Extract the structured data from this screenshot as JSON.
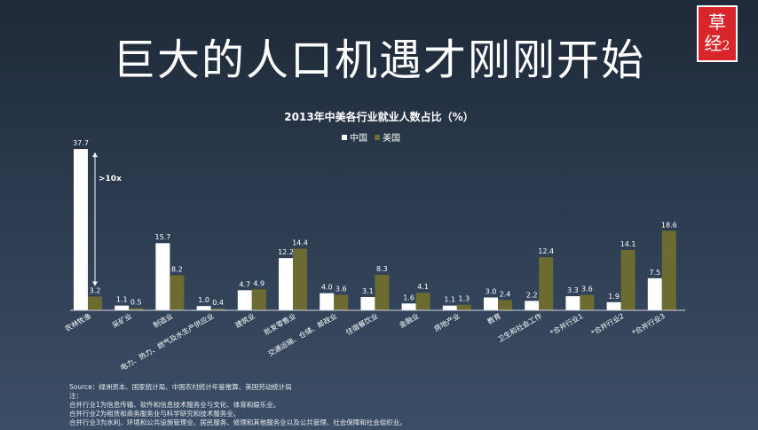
{
  "title": "巨大的人口机遇才刚刚开始",
  "logo": {
    "chars": [
      "草",
      "经"
    ],
    "suffix": "2"
  },
  "colors": {
    "china": "#ffffff",
    "usa": "#6b6b32",
    "axis": "#cfd6df"
  },
  "annotation": ">10x",
  "chart_data": {
    "type": "bar",
    "title": "2013年中美各行业就业人数占比（%）",
    "xlabel": "",
    "ylabel": "",
    "ylim": [
      0,
      40
    ],
    "grid": false,
    "legend_position": "top-center",
    "categories": [
      "农林牧渔",
      "采矿业",
      "制造业",
      "电力、热力、燃气及水生产供应业",
      "建筑业",
      "批发零售业",
      "交通运输、仓储、邮政业",
      "住宿餐饮业",
      "金融业",
      "房地产业",
      "教育",
      "卫生和社会工作",
      "*合并行业1",
      "*合并行业2",
      "*合并行业3"
    ],
    "series": [
      {
        "name": "中国",
        "values": [
          37.7,
          1.1,
          15.7,
          1.0,
          4.7,
          12.2,
          4.0,
          3.1,
          1.6,
          1.1,
          3.0,
          2.2,
          3.3,
          1.9,
          7.5
        ]
      },
      {
        "name": "美国",
        "values": [
          3.2,
          0.5,
          8.2,
          0.4,
          4.9,
          14.4,
          3.6,
          8.3,
          4.1,
          1.3,
          2.4,
          12.4,
          3.6,
          14.1,
          18.6
        ]
      }
    ]
  },
  "notes": {
    "source": "Source：绿洲资本、国家统计局、中国农村统计年鉴推算、美国劳动统计局",
    "label": "注：",
    "lines": [
      "合并行业1为信息传输、软件和信息技术服务业与文化、体育和娱乐业。",
      "合并行业2为租赁和商务服务业与科学研究和技术服务业。",
      "合并行业3为水利、环境和公共设施管理业、居民服务、修理和其他服务业以及公共管理、社会保障和社会组织业。"
    ]
  }
}
